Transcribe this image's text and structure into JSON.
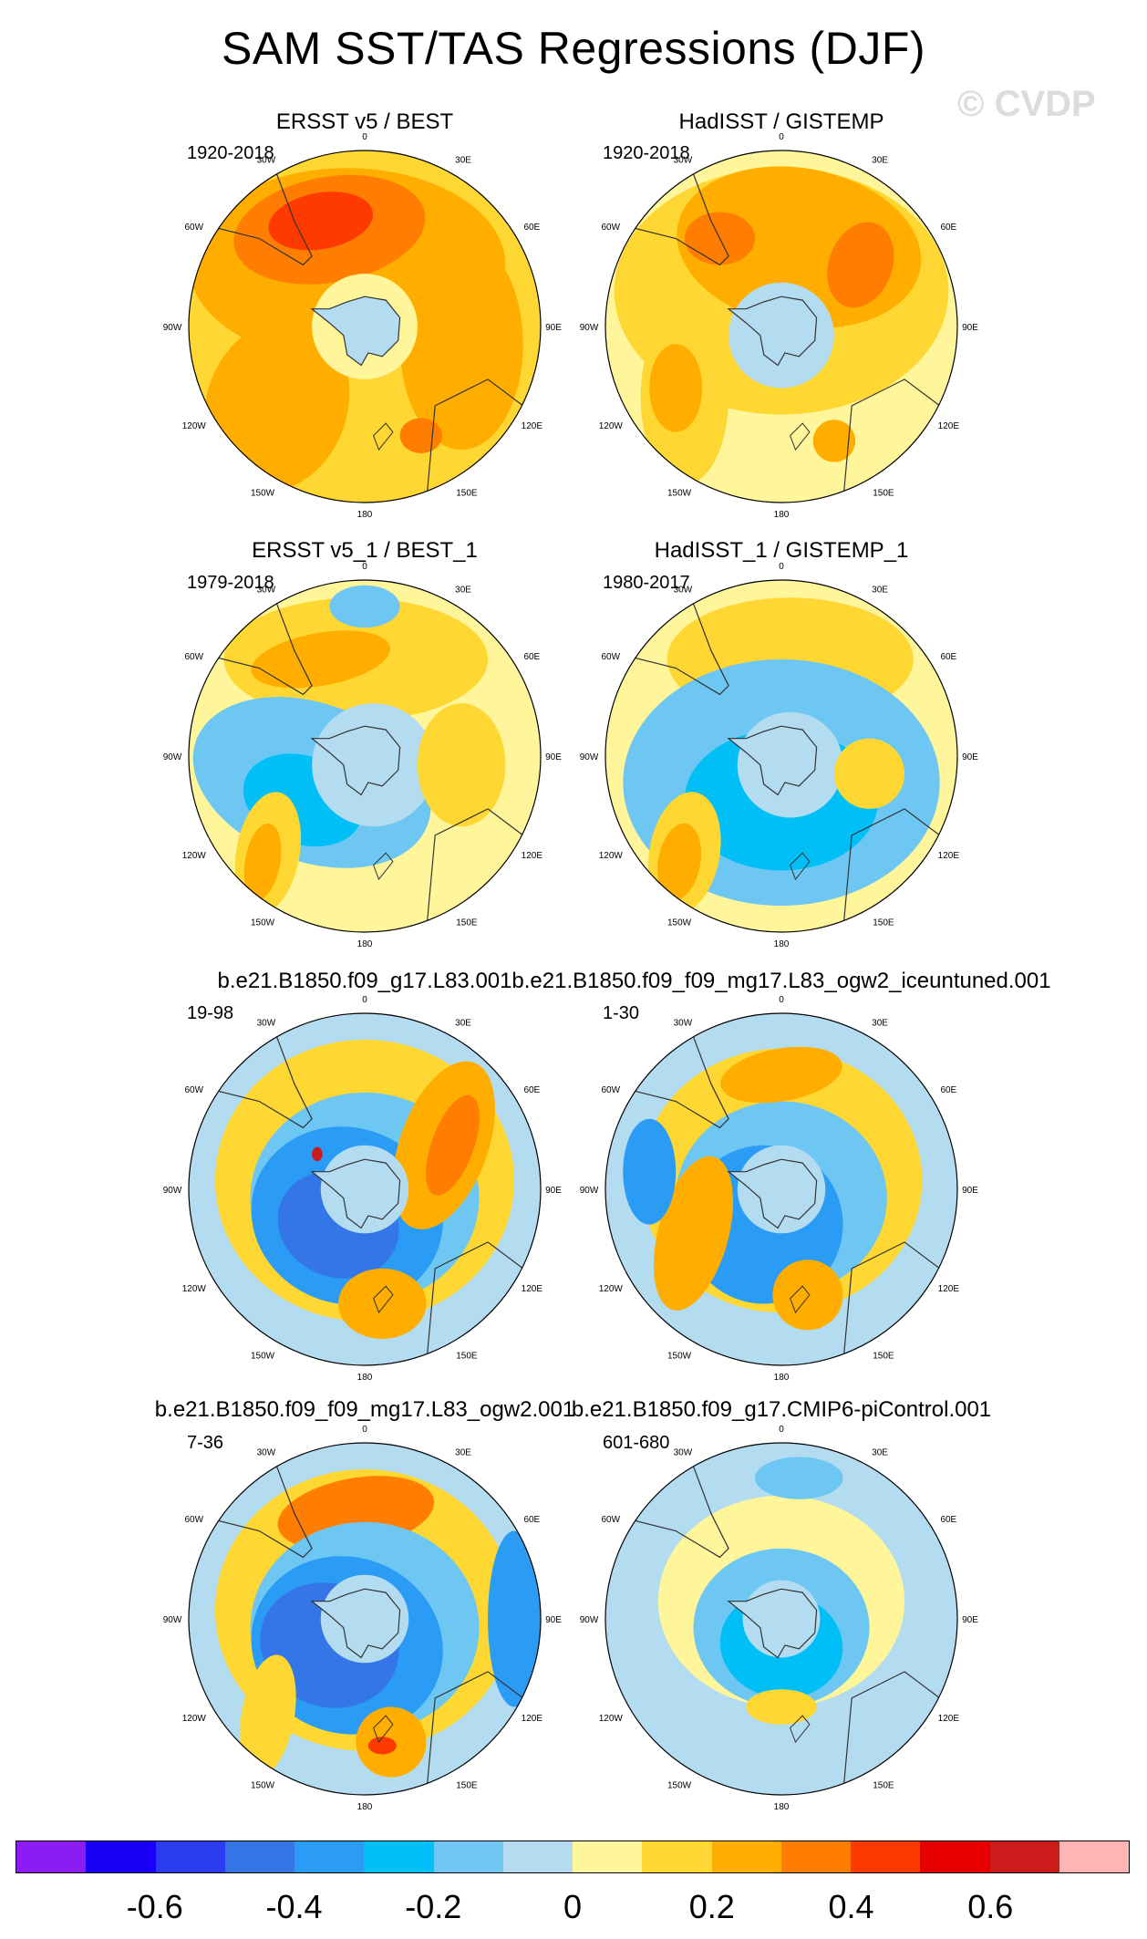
{
  "title": "SAM SST/TAS Regressions (DJF)",
  "watermark": "© CVDP",
  "longitude_labels": [
    "0",
    "30E",
    "60E",
    "90E",
    "120E",
    "150E",
    "180",
    "150W",
    "120W",
    "90W",
    "60W",
    "30W"
  ],
  "panels": [
    {
      "title": "ERSST v5 / BEST",
      "period": "1920-2018",
      "pattern": "warm"
    },
    {
      "title": "HadISST / GISTEMP",
      "period": "1920-2018",
      "pattern": "warm2"
    },
    {
      "title": "ERSST v5_1 / BEST_1",
      "period": "1979-2018",
      "pattern": "mixed"
    },
    {
      "title": "HadISST_1 / GISTEMP_1",
      "period": "1980-2017",
      "pattern": "mixed2"
    },
    {
      "title": "b.e21.B1850.f09_g17.L83.001",
      "period": "19-98",
      "pattern": "ring"
    },
    {
      "title": "b.e21.B1850.f09_f09_mg17.L83_ogw2_iceuntuned.001",
      "period": "1-30",
      "pattern": "ring2"
    },
    {
      "title": "b.e21.B1850.f09_f09_mg17.L83_ogw2.001",
      "period": "7-36",
      "pattern": "ring3"
    },
    {
      "title": "b.e21.B1850.f09_g17.CMIP6-piControl.001",
      "period": "601-680",
      "pattern": "weak"
    }
  ],
  "colorbar": {
    "colors": [
      "#8c1cf4",
      "#1a00f4",
      "#2b3cf0",
      "#3475e8",
      "#2a9cf5",
      "#00bff7",
      "#6ec7f2",
      "#b4dcf0",
      "#fff59a",
      "#ffd733",
      "#ffae00",
      "#ff7d00",
      "#ff3a00",
      "#e60000",
      "#cb1b1b",
      "#ffb5b5"
    ],
    "tick_labels": [
      "-0.6",
      "-0.4",
      "-0.2",
      "0",
      "0.2",
      "0.4",
      "0.6"
    ]
  }
}
